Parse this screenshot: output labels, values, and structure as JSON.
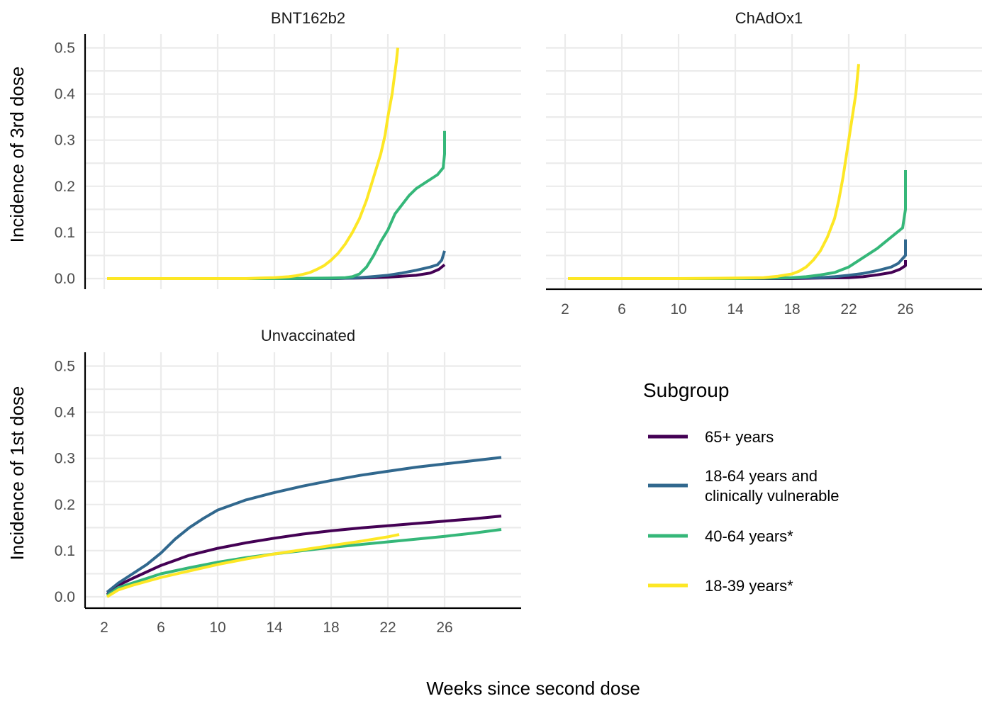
{
  "chart_data": {
    "type": "line",
    "xlabel": "Weeks since second dose",
    "x_ticks": [
      2,
      6,
      10,
      14,
      18,
      22,
      26
    ],
    "y_ticks": [
      0.0,
      0.1,
      0.2,
      0.3,
      0.4,
      0.5
    ],
    "y_tick_labels": [
      "0.0",
      "0.1",
      "0.2",
      "0.3",
      "0.4",
      "0.5"
    ],
    "xlim": [
      2,
      32
    ],
    "ylim": [
      0,
      0.5
    ],
    "grid": true,
    "legend": {
      "title": "Subgroup",
      "position": "bottom-right",
      "entries": [
        {
          "lines": [
            "65+ years"
          ],
          "color": "#440154"
        },
        {
          "lines": [
            "18-64 years and",
            "clinically vulnerable"
          ],
          "color": "#31688e"
        },
        {
          "lines": [
            "40-64 years*"
          ],
          "color": "#35b779"
        },
        {
          "lines": [
            "18-39 years*"
          ],
          "color": "#fde725"
        }
      ]
    },
    "panels": [
      {
        "title": "BNT162b2",
        "ylabel": "Incidence of 3rd dose",
        "show_x_ticks": false,
        "series": [
          {
            "name": "65+ years",
            "color": "#440154",
            "x": [
              2.2,
              10,
              14,
              18,
              20,
              22,
              24,
              25,
              25.6,
              26
            ],
            "y": [
              0,
              0,
              0,
              0,
              0.001,
              0.003,
              0.007,
              0.012,
              0.02,
              0.03
            ]
          },
          {
            "name": "18-64 years and clinically vulnerable",
            "color": "#31688e",
            "x": [
              2.2,
              10,
              14,
              18,
              19.5,
              20.5,
              22,
              23,
              24,
              25,
              25.5,
              25.8,
              26
            ],
            "y": [
              0,
              0,
              0,
              0,
              0.001,
              0.003,
              0.007,
              0.012,
              0.018,
              0.025,
              0.03,
              0.04,
              0.06
            ]
          },
          {
            "name": "40-64 years*",
            "color": "#35b779",
            "x": [
              2.2,
              10,
              14,
              18,
              19,
              19.5,
              20,
              20.5,
              21,
              21.5,
              22,
              22.5,
              23,
              23.5,
              24,
              24.5,
              25,
              25.5,
              25.9,
              26,
              26
            ],
            "y": [
              0,
              0,
              0,
              0.001,
              0.002,
              0.004,
              0.01,
              0.025,
              0.05,
              0.08,
              0.105,
              0.14,
              0.16,
              0.18,
              0.195,
              0.205,
              0.215,
              0.225,
              0.24,
              0.27,
              0.32
            ]
          },
          {
            "name": "18-39 years*",
            "color": "#fde725",
            "x": [
              2.2,
              10,
              12,
              13,
              14,
              15,
              15.5,
              16,
              16.5,
              17,
              17.5,
              18,
              18.5,
              19,
              19.5,
              20,
              20.5,
              21,
              21.5,
              21.8,
              22,
              22.3,
              22.6,
              22.7
            ],
            "y": [
              0,
              0,
              0,
              0.001,
              0.002,
              0.004,
              0.006,
              0.009,
              0.013,
              0.02,
              0.028,
              0.04,
              0.055,
              0.075,
              0.1,
              0.13,
              0.17,
              0.22,
              0.27,
              0.31,
              0.35,
              0.4,
              0.47,
              0.5
            ]
          }
        ]
      },
      {
        "title": "ChAdOx1",
        "ylabel": "",
        "show_x_ticks": true,
        "series": [
          {
            "name": "65+ years",
            "color": "#440154",
            "x": [
              2.2,
              10,
              14,
              18,
              20,
              22,
              23,
              24,
              25,
              25.6,
              26,
              26
            ],
            "y": [
              0,
              0,
              0,
              0,
              0.001,
              0.002,
              0.004,
              0.008,
              0.013,
              0.02,
              0.028,
              0.04
            ]
          },
          {
            "name": "18-64 years and clinically vulnerable",
            "color": "#31688e",
            "x": [
              2.2,
              10,
              14,
              18,
              20,
              21,
              22,
              23,
              24,
              25,
              25.5,
              26,
              26
            ],
            "y": [
              0,
              0,
              0,
              0.001,
              0.002,
              0.004,
              0.007,
              0.011,
              0.017,
              0.025,
              0.033,
              0.05,
              0.085
            ]
          },
          {
            "name": "40-64 years*",
            "color": "#35b779",
            "x": [
              2.2,
              10,
              14,
              17,
              18,
              19,
              20,
              21,
              22,
              23,
              24,
              25,
              25.8,
              26,
              26
            ],
            "y": [
              0,
              0,
              0,
              0.001,
              0.002,
              0.004,
              0.008,
              0.013,
              0.025,
              0.045,
              0.065,
              0.09,
              0.11,
              0.15,
              0.235
            ]
          },
          {
            "name": "18-39 years*",
            "color": "#fde725",
            "x": [
              2.2,
              10,
              14,
              16,
              17,
              18,
              18.5,
              19,
              19.5,
              20,
              20.5,
              21,
              21.3,
              21.6,
              21.9,
              22.1,
              22.3,
              22.5,
              22.7
            ],
            "y": [
              0,
              0,
              0.001,
              0.002,
              0.005,
              0.01,
              0.016,
              0.025,
              0.04,
              0.06,
              0.09,
              0.13,
              0.17,
              0.22,
              0.28,
              0.32,
              0.36,
              0.4,
              0.465
            ]
          }
        ]
      },
      {
        "title": "Unvaccinated",
        "ylabel": "Incidence of 1st dose",
        "show_x_ticks": true,
        "series": [
          {
            "name": "65+ years",
            "color": "#440154",
            "x": [
              2.2,
              3,
              4,
              6,
              8,
              10,
              12,
              14,
              16,
              18,
              20,
              22,
              24,
              26,
              28,
              30
            ],
            "y": [
              0.005,
              0.025,
              0.04,
              0.068,
              0.09,
              0.105,
              0.117,
              0.127,
              0.136,
              0.143,
              0.149,
              0.154,
              0.159,
              0.164,
              0.169,
              0.175
            ]
          },
          {
            "name": "18-64 years and clinically vulnerable",
            "color": "#31688e",
            "x": [
              2.2,
              3,
              4,
              5,
              6,
              7,
              8,
              9,
              10,
              12,
              14,
              16,
              18,
              20,
              22,
              24,
              26,
              28,
              30
            ],
            "y": [
              0.01,
              0.03,
              0.05,
              0.07,
              0.095,
              0.125,
              0.15,
              0.17,
              0.188,
              0.21,
              0.226,
              0.24,
              0.252,
              0.263,
              0.272,
              0.281,
              0.288,
              0.295,
              0.302
            ]
          },
          {
            "name": "40-64 years*",
            "color": "#35b779",
            "x": [
              2.2,
              3,
              4,
              6,
              8,
              10,
              12,
              14,
              16,
              18,
              20,
              22,
              24,
              26,
              28,
              30
            ],
            "y": [
              0.003,
              0.02,
              0.03,
              0.05,
              0.063,
              0.075,
              0.085,
              0.093,
              0.1,
              0.107,
              0.113,
              0.119,
              0.125,
              0.131,
              0.138,
              0.146
            ]
          },
          {
            "name": "18-39 years*",
            "color": "#fde725",
            "x": [
              2.2,
              3,
              4,
              6,
              8,
              10,
              12,
              14,
              16,
              18,
              20,
              22,
              22.8
            ],
            "y": [
              0,
              0.015,
              0.025,
              0.042,
              0.056,
              0.07,
              0.082,
              0.093,
              0.102,
              0.111,
              0.12,
              0.13,
              0.135
            ]
          }
        ]
      }
    ]
  }
}
